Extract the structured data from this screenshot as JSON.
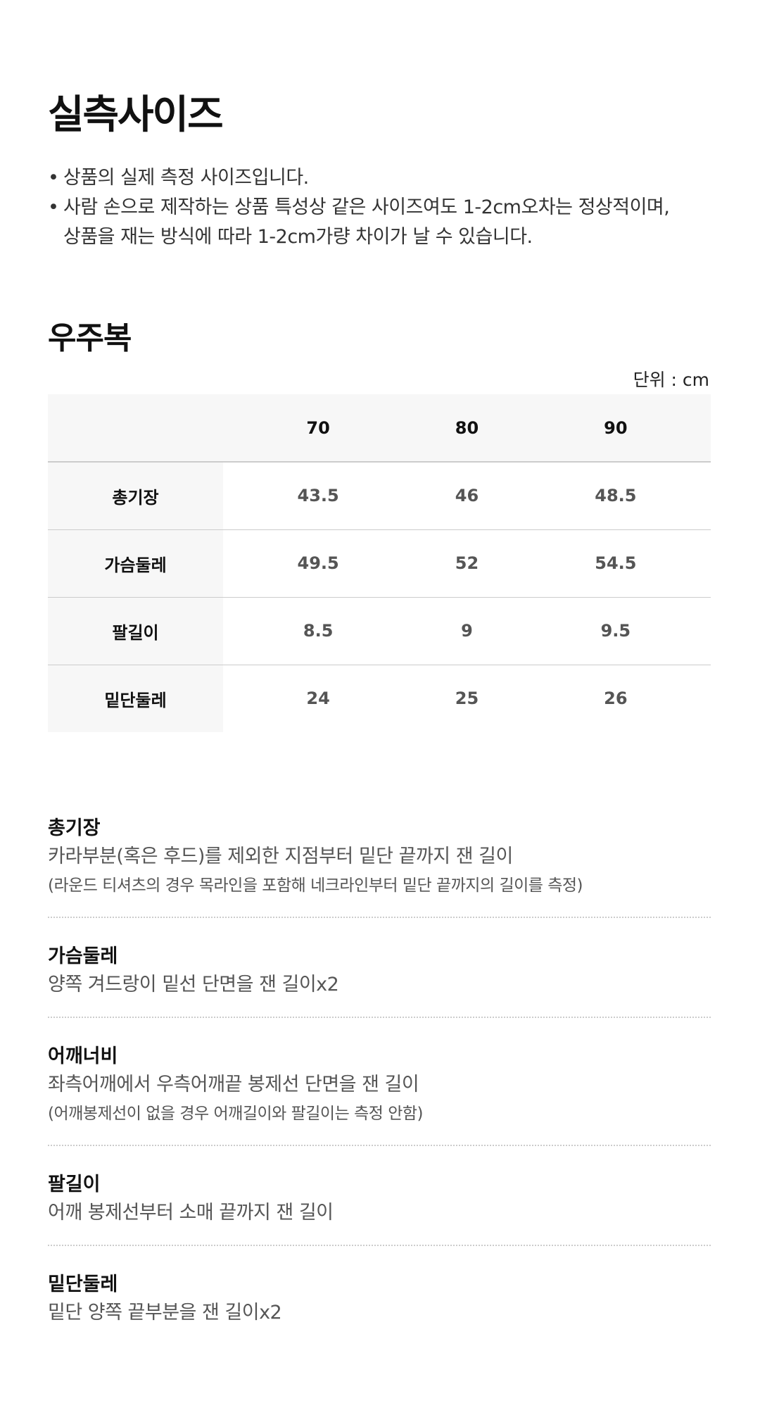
{
  "title": "실측사이즈",
  "notes": [
    "상품의 실제 측정 사이즈입니다.",
    "사람 손으로 제작하는 상품 특성상 같은 사이즈여도 1-2cm오차는 정상적이며,",
    "상품을 재는 방식에 따라 1-2cm가량 차이가 날 수 있습니다."
  ],
  "section_title": "우주복",
  "unit": "단위 : cm",
  "table": {
    "headers": [
      "",
      "70",
      "80",
      "90"
    ],
    "rows": [
      {
        "label": "총기장",
        "values": [
          "43.5",
          "46",
          "48.5"
        ]
      },
      {
        "label": "가슴둘레",
        "values": [
          "49.5",
          "52",
          "54.5"
        ]
      },
      {
        "label": "팔길이",
        "values": [
          "8.5",
          "9",
          "9.5"
        ]
      },
      {
        "label": "밑단둘레",
        "values": [
          "24",
          "25",
          "26"
        ]
      }
    ]
  },
  "definitions": [
    {
      "term": "총기장",
      "desc": "카라부분(혹은 후드)를 제외한 지점부터 밑단 끝까지 잰 길이",
      "sub": "(라운드 티셔츠의 경우 목라인을 포함해 네크라인부터 밑단 끝까지의 길이를 측정)"
    },
    {
      "term": "가슴둘레",
      "desc": "양쪽 겨드랑이 밑선 단면을 잰 길이x2"
    },
    {
      "term": "어깨너비",
      "desc": "좌측어깨에서 우측어깨끝 봉제선 단면을 잰 길이",
      "sub": "(어깨봉제선이 없을 경우 어깨길이와 팔길이는 측정 안함)"
    },
    {
      "term": "팔길이",
      "desc": "어깨 봉제선부터 소매 끝까지 잰 길이"
    },
    {
      "term": "밑단둘레",
      "desc": "밑단 양쪽 끝부분을 잰 길이x2"
    }
  ]
}
